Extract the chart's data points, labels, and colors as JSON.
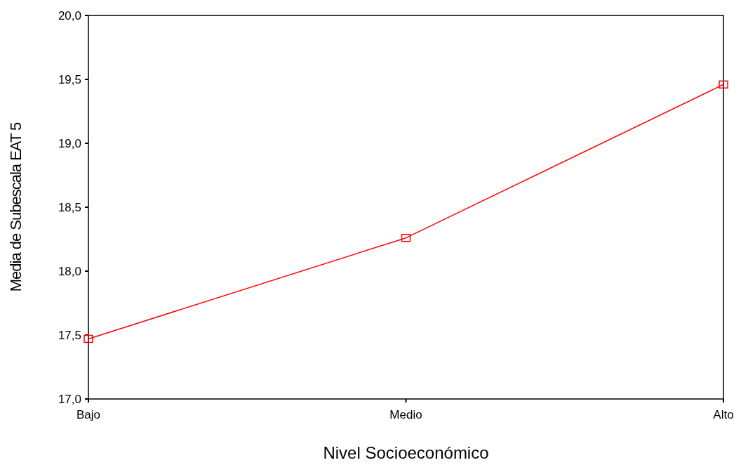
{
  "chart_data": {
    "type": "line",
    "xlabel": "Nivel Socioeconómico",
    "ylabel": "Media de Subescala EAT 5",
    "categories": [
      "Bajo",
      "Medio",
      "Alto"
    ],
    "series": [
      {
        "color": "#ff0000",
        "values": [
          17.47,
          18.26,
          19.46
        ]
      }
    ],
    "ylim": [
      17,
      20
    ],
    "yticks": [
      {
        "value": 17,
        "label": "17,0"
      },
      {
        "value": 17.5,
        "label": "17,5"
      },
      {
        "value": 18,
        "label": "18,0"
      },
      {
        "value": 18.5,
        "label": "18,5"
      },
      {
        "value": 19,
        "label": "19,0"
      },
      {
        "value": 19.5,
        "label": "19,5"
      },
      {
        "value": 20,
        "label": "20,0"
      }
    ],
    "grid": false,
    "marker": "square",
    "line_style": "solid"
  }
}
